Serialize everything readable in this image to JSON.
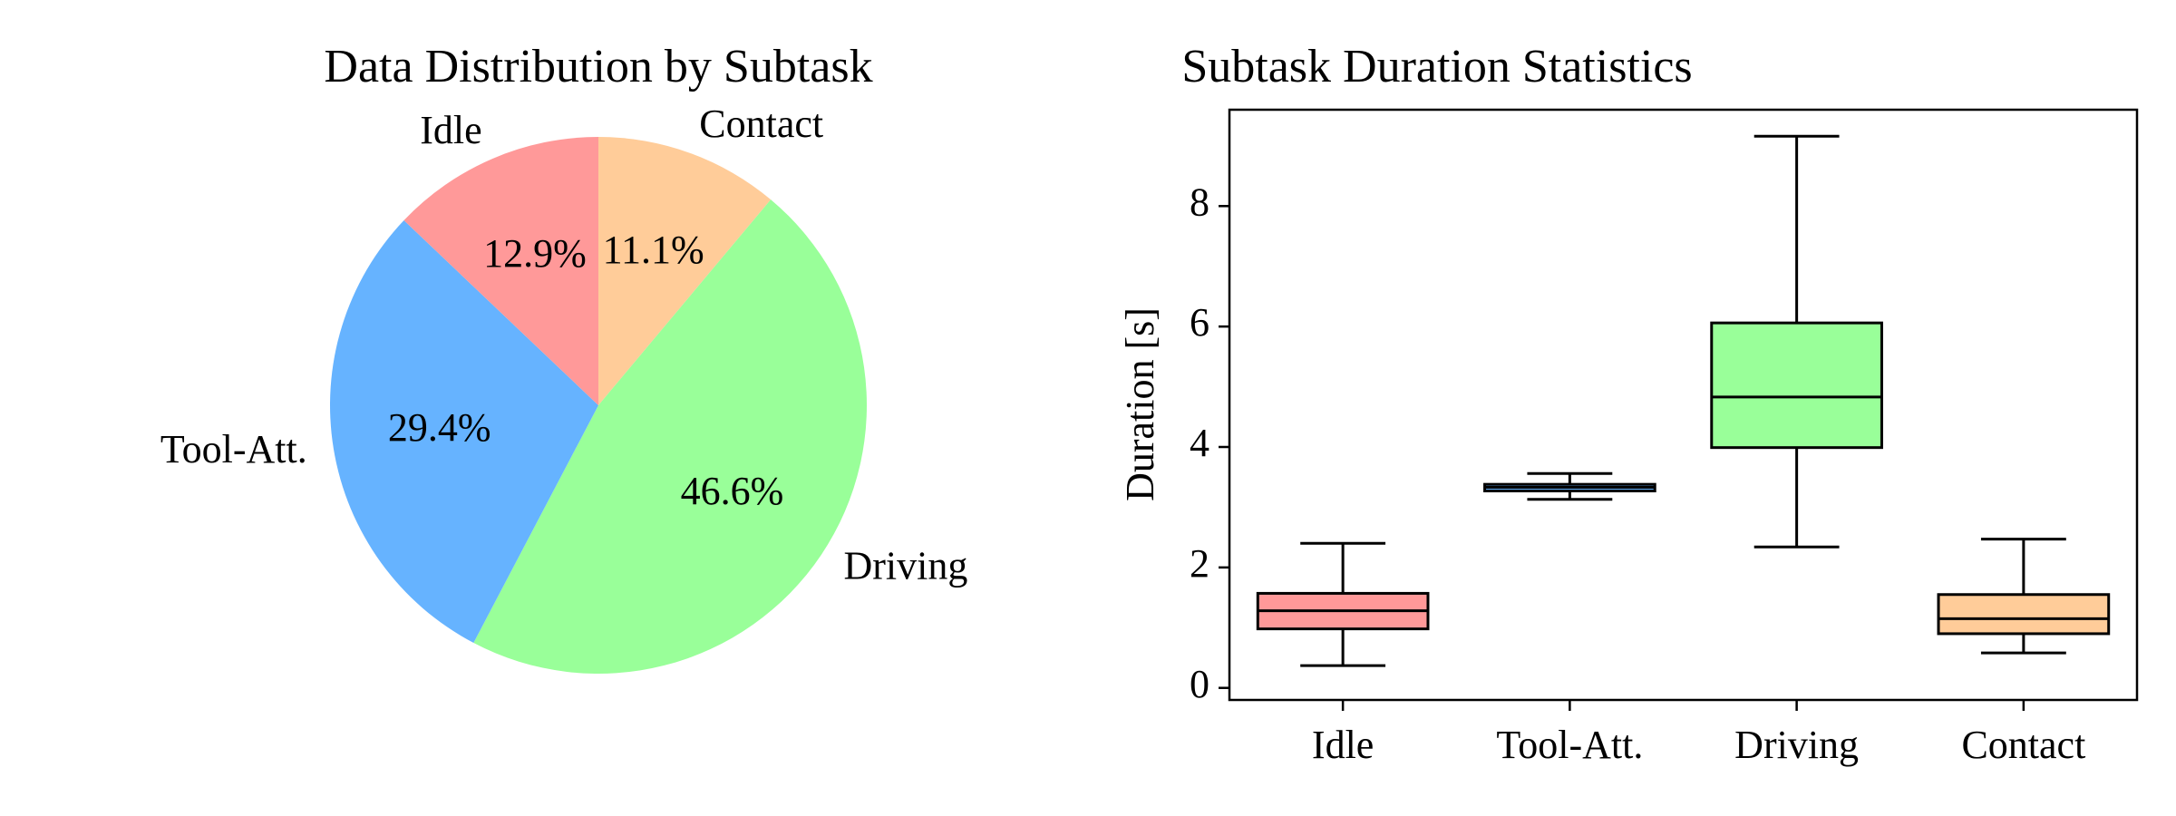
{
  "chart_data": [
    {
      "type": "pie",
      "title": "Data Distribution by Subtask",
      "start_angle_deg": 90,
      "direction": "clockwise",
      "slices": [
        {
          "label": "Contact",
          "value": 11.1,
          "pct_label": "11.1%",
          "color": "#ffcc99"
        },
        {
          "label": "Driving",
          "value": 46.6,
          "pct_label": "46.6%",
          "color": "#99ff99"
        },
        {
          "label": "Tool-Att.",
          "value": 29.4,
          "pct_label": "29.4%",
          "color": "#66b3ff"
        },
        {
          "label": "Idle",
          "value": 12.9,
          "pct_label": "12.9%",
          "color": "#ff9999"
        }
      ]
    },
    {
      "type": "box",
      "title": "Subtask Duration Statistics",
      "xlabel": "",
      "ylabel": "Duration [s]",
      "ylim": [
        -0.2,
        9.6
      ],
      "yticks": [
        0,
        2,
        4,
        6,
        8
      ],
      "categories": [
        "Idle",
        "Tool-Att.",
        "Driving",
        "Contact"
      ],
      "boxes": [
        {
          "category": "Idle",
          "whisker_low": 0.37,
          "q1": 0.98,
          "median": 1.28,
          "q3": 1.57,
          "whisker_high": 2.4,
          "color": "#ff9999"
        },
        {
          "category": "Tool-Att.",
          "whisker_low": 3.13,
          "q1": 3.27,
          "median": 3.33,
          "q3": 3.38,
          "whisker_high": 3.56,
          "color": "#66b3ff"
        },
        {
          "category": "Driving",
          "whisker_low": 2.34,
          "q1": 3.99,
          "median": 4.83,
          "q3": 6.06,
          "whisker_high": 9.16,
          "color": "#99ff99"
        },
        {
          "category": "Contact",
          "whisker_low": 0.58,
          "q1": 0.9,
          "median": 1.15,
          "q3": 1.55,
          "whisker_high": 2.47,
          "color": "#ffcc99"
        }
      ]
    }
  ]
}
